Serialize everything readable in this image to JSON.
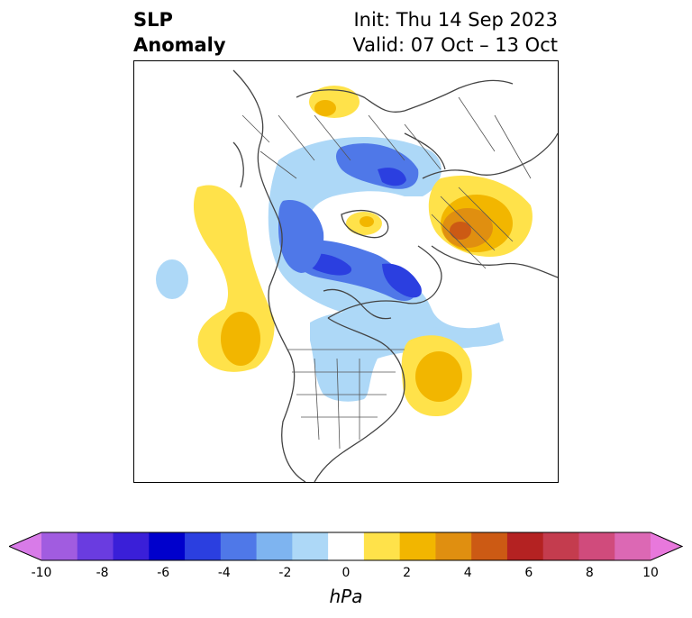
{
  "header": {
    "title_line1": "SLP",
    "title_line2": "Anomaly",
    "init_text": "Init: Thu 14 Sep 2023",
    "valid_text": "Valid: 07 Oct – 13 Oct"
  },
  "colorbar": {
    "label": "hPa",
    "min": -10,
    "max": 10,
    "extend": "both",
    "ticks": [
      "-10",
      "-8",
      "-6",
      "-4",
      "-2",
      "0",
      "2",
      "4",
      "6",
      "8",
      "10"
    ],
    "colors": [
      "#d87be8",
      "#a15ce0",
      "#6a3ce0",
      "#3a1fd8",
      "#0000cc",
      "#2b3fe0",
      "#4f78e8",
      "#7eb4f0",
      "#add8f7",
      "#ffffff",
      "#ffe24a",
      "#f2b600",
      "#e08f10",
      "#cc5a14",
      "#b42222",
      "#c43c4e",
      "#d04b7c",
      "#dc68b4",
      "#e878dc"
    ]
  },
  "map": {
    "projection": "polar-stereographic",
    "features": [
      "coastlines",
      "country-borders",
      "state-borders"
    ],
    "anomaly_colors": {
      "light_blue": "#add8f7",
      "mid_blue": "#7eb4f0",
      "blue": "#4f78e8",
      "dark_blue": "#2b3fe0",
      "yellow": "#ffe24a",
      "gold": "#f2b600",
      "orange": "#e08f10",
      "dark_orange": "#cc5a14"
    }
  }
}
